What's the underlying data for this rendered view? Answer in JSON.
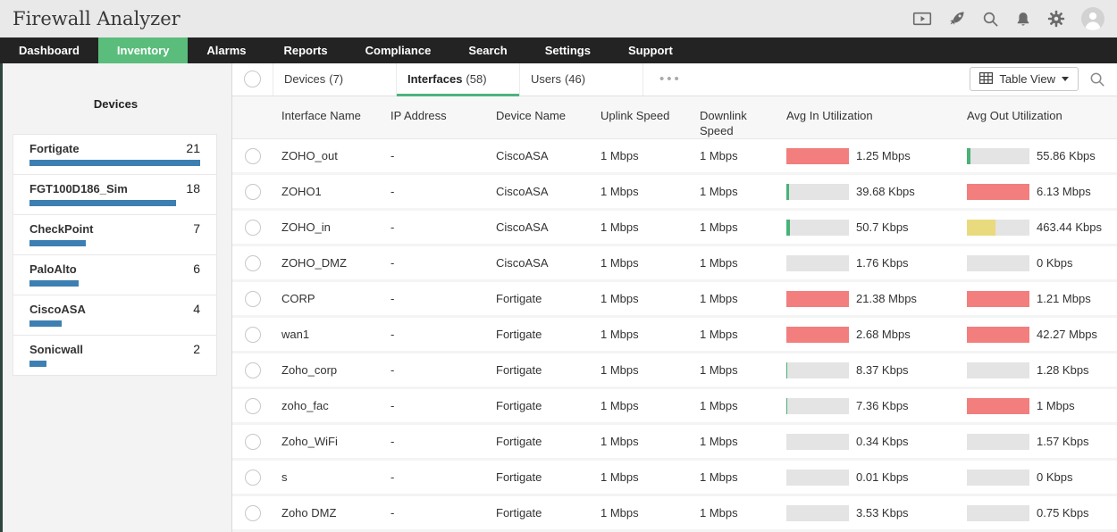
{
  "app": {
    "title": "Firewall Analyzer"
  },
  "header": {
    "icons": [
      "presentation-icon",
      "rocket-icon",
      "search-icon",
      "bell-icon",
      "gear-icon",
      "avatar"
    ]
  },
  "nav": {
    "active_index": 1,
    "items": [
      "Dashboard",
      "Inventory",
      "Alarms",
      "Reports",
      "Compliance",
      "Search",
      "Settings",
      "Support"
    ]
  },
  "sidebar": {
    "title": "Devices",
    "items": [
      {
        "label": "Fortigate",
        "count": "21",
        "pct": 100
      },
      {
        "label": "FGT100D186_Sim",
        "count": "18",
        "pct": 86
      },
      {
        "label": "CheckPoint",
        "count": "7",
        "pct": 33
      },
      {
        "label": "PaloAlto",
        "count": "6",
        "pct": 29
      },
      {
        "label": "CiscoASA",
        "count": "4",
        "pct": 19
      },
      {
        "label": "Sonicwall",
        "count": "2",
        "pct": 10
      }
    ]
  },
  "toolbar": {
    "tabs": [
      {
        "label": "Devices",
        "count": "(7)",
        "active": false
      },
      {
        "label": "Interfaces",
        "count": "(58)",
        "active": true
      },
      {
        "label": "Users",
        "count": "(46)",
        "active": false
      }
    ],
    "more_label": "•••",
    "view_button_label": "Table View"
  },
  "table": {
    "columns": [
      "Interface Name",
      "IP Address",
      "Device Name",
      "Uplink Speed",
      "Downlink Speed",
      "Avg In Utilization",
      "Avg Out Utilization"
    ],
    "rows": [
      {
        "interface": "ZOHO_out",
        "ip": "-",
        "device": "CiscoASA",
        "uplink": "1 Mbps",
        "downlink": "1 Mbps",
        "avg_in": {
          "label": "1.25 Mbps",
          "pct": 100,
          "color": "red"
        },
        "avg_out": {
          "label": "55.86 Kbps",
          "pct": 5,
          "color": "green"
        }
      },
      {
        "interface": "ZOHO1",
        "ip": "-",
        "device": "CiscoASA",
        "uplink": "1 Mbps",
        "downlink": "1 Mbps",
        "avg_in": {
          "label": "39.68 Kbps",
          "pct": 4,
          "color": "green"
        },
        "avg_out": {
          "label": "6.13 Mbps",
          "pct": 100,
          "color": "red"
        }
      },
      {
        "interface": "ZOHO_in",
        "ip": "-",
        "device": "CiscoASA",
        "uplink": "1 Mbps",
        "downlink": "1 Mbps",
        "avg_in": {
          "label": "50.7 Kbps",
          "pct": 5,
          "color": "green"
        },
        "avg_out": {
          "label": "463.44 Kbps",
          "pct": 46,
          "color": "yellow"
        }
      },
      {
        "interface": "ZOHO_DMZ",
        "ip": "-",
        "device": "CiscoASA",
        "uplink": "1 Mbps",
        "downlink": "1 Mbps",
        "avg_in": {
          "label": "1.76 Kbps",
          "pct": 0,
          "color": "none"
        },
        "avg_out": {
          "label": "0 Kbps",
          "pct": 0,
          "color": "none"
        }
      },
      {
        "interface": "CORP",
        "ip": "-",
        "device": "Fortigate",
        "uplink": "1 Mbps",
        "downlink": "1 Mbps",
        "avg_in": {
          "label": "21.38 Mbps",
          "pct": 100,
          "color": "red"
        },
        "avg_out": {
          "label": "1.21 Mbps",
          "pct": 100,
          "color": "red"
        }
      },
      {
        "interface": "wan1",
        "ip": "-",
        "device": "Fortigate",
        "uplink": "1 Mbps",
        "downlink": "1 Mbps",
        "avg_in": {
          "label": "2.68 Mbps",
          "pct": 100,
          "color": "red"
        },
        "avg_out": {
          "label": "42.27 Mbps",
          "pct": 100,
          "color": "red"
        }
      },
      {
        "interface": "Zoho_corp",
        "ip": "-",
        "device": "Fortigate",
        "uplink": "1 Mbps",
        "downlink": "1 Mbps",
        "avg_in": {
          "label": "8.37 Kbps",
          "pct": 2,
          "color": "green"
        },
        "avg_out": {
          "label": "1.28 Kbps",
          "pct": 0,
          "color": "none"
        }
      },
      {
        "interface": "zoho_fac",
        "ip": "-",
        "device": "Fortigate",
        "uplink": "1 Mbps",
        "downlink": "1 Mbps",
        "avg_in": {
          "label": "7.36 Kbps",
          "pct": 2,
          "color": "green"
        },
        "avg_out": {
          "label": "1 Mbps",
          "pct": 100,
          "color": "red"
        }
      },
      {
        "interface": "Zoho_WiFi",
        "ip": "-",
        "device": "Fortigate",
        "uplink": "1 Mbps",
        "downlink": "1 Mbps",
        "avg_in": {
          "label": "0.34 Kbps",
          "pct": 0,
          "color": "none"
        },
        "avg_out": {
          "label": "1.57 Kbps",
          "pct": 0,
          "color": "none"
        }
      },
      {
        "interface": "s",
        "ip": "-",
        "device": "Fortigate",
        "uplink": "1 Mbps",
        "downlink": "1 Mbps",
        "avg_in": {
          "label": "0.01 Kbps",
          "pct": 0,
          "color": "none"
        },
        "avg_out": {
          "label": "0 Kbps",
          "pct": 0,
          "color": "none"
        }
      },
      {
        "interface": "Zoho DMZ",
        "ip": "-",
        "device": "Fortigate",
        "uplink": "1 Mbps",
        "downlink": "1 Mbps",
        "avg_in": {
          "label": "3.53 Kbps",
          "pct": 0,
          "color": "none"
        },
        "avg_out": {
          "label": "0.75 Kbps",
          "pct": 0,
          "color": "none"
        }
      }
    ]
  },
  "colors": {
    "red": "#f27e7e",
    "yellow": "#e9da7e",
    "green": "#49b277",
    "none": "transparent",
    "track": "#e4e4e4",
    "bar_blue": "#3d7fb2",
    "nav_active": "#5abd7c",
    "tab_underline": "#4db380"
  }
}
